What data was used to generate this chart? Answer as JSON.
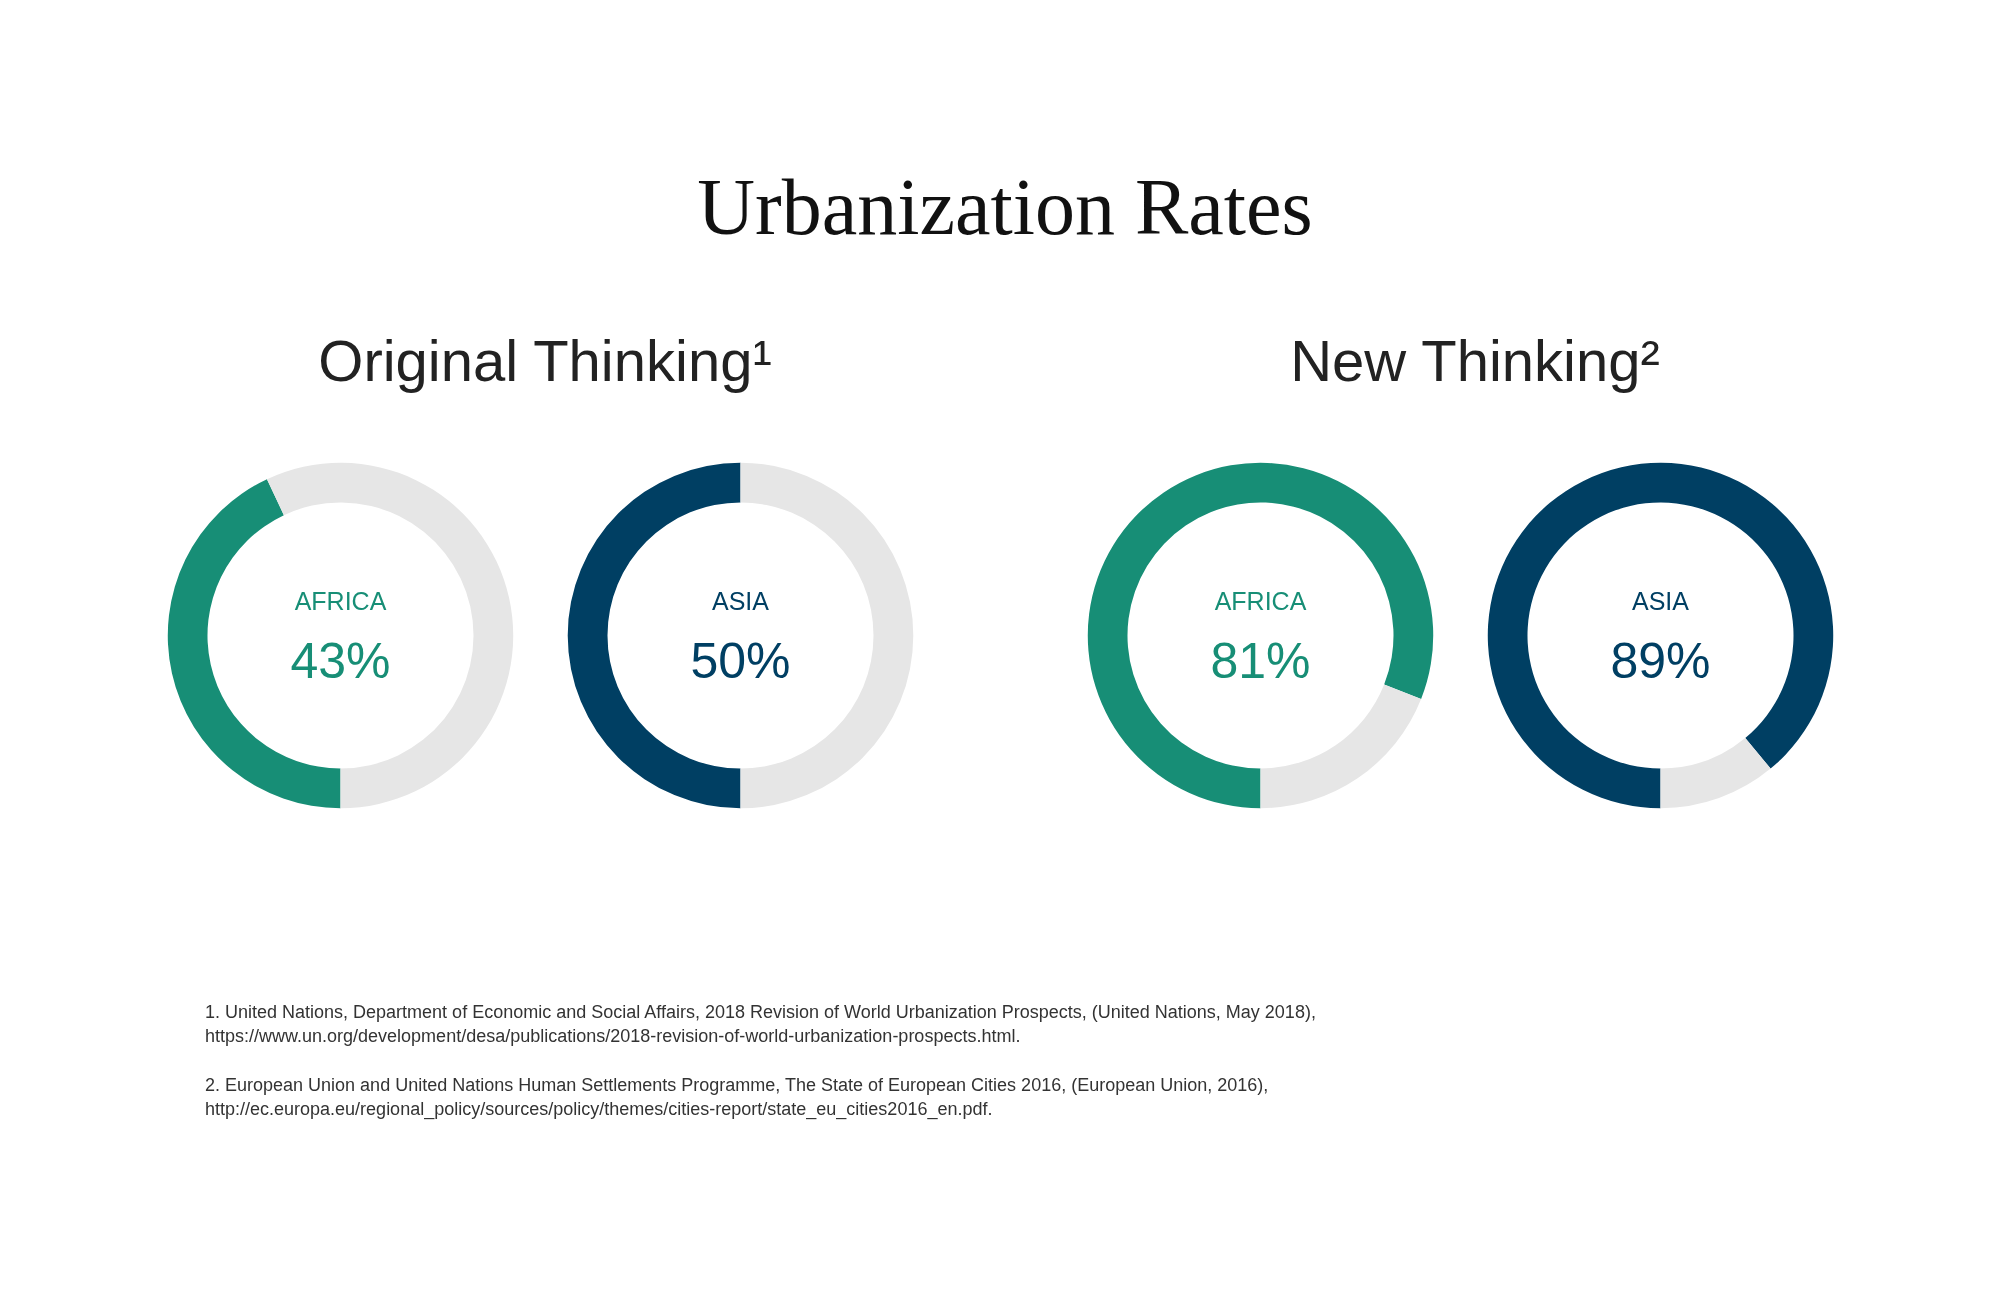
{
  "chart_data": [
    {
      "type": "donut",
      "title": "Urbanization Rates",
      "subtitle": "Original Thinking¹",
      "categories": [
        "AFRICA",
        null
      ],
      "values": [
        43,
        57
      ],
      "colors": [
        "#178e76",
        "#e6e6e6"
      ],
      "value_labels": [
        "43%",
        null
      ],
      "annotations": [
        "1.  United Nations, Department of Economic and Social Affairs, 2018 Revision of World Urbanization Prospects, (United Nations, May 2018), https://www.un.org/development/desa/publications/2018-revision-of-world-urbanization-prospects.html.",
        "2.  European Union and United Nations Human Settlements Programme, The State of European Cities 2016, (European Union, 2016), http://ec.europa.eu/regional_policy/sources/policy/themes/cities-report/state_eu_cities2016_en.pdf."
      ]
    },
    {
      "type": "donut",
      "categories": [
        "ASIA",
        null
      ],
      "values": [
        50,
        50
      ],
      "colors": [
        "#003f63",
        "#e6e6e6"
      ],
      "value_labels": [
        "50%",
        null
      ]
    },
    {
      "type": "donut",
      "subtitle": "New Thinking²",
      "categories": [
        "AFRICA",
        null
      ],
      "values": [
        81,
        19
      ],
      "colors": [
        "#178e76",
        "#e6e6e6"
      ],
      "value_labels": [
        "81%",
        null
      ]
    },
    {
      "type": "donut",
      "categories": [
        "ASIA",
        null
      ],
      "values": [
        89,
        11
      ],
      "colors": [
        "#003f63",
        "#e6e6e6"
      ],
      "value_labels": [
        "89%",
        null
      ]
    }
  ]
}
